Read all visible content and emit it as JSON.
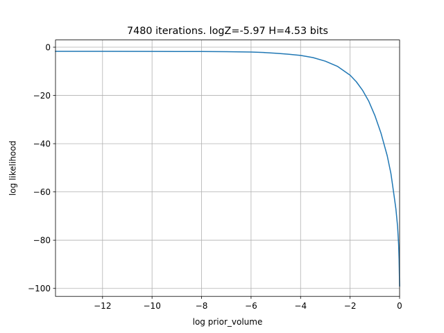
{
  "chart_data": {
    "type": "line",
    "title": "7480 iterations. logZ=-5.97 H=4.53 bits",
    "xlabel": "log prior_volume",
    "ylabel": "log likelihood",
    "xlim": [
      -13.9,
      0
    ],
    "ylim": [
      -103.3,
      3.0
    ],
    "xticks": [
      -12,
      -10,
      -8,
      -6,
      -4,
      -2,
      0
    ],
    "xtick_labels": [
      "−12",
      "−10",
      "−8",
      "−6",
      "−4",
      "−2",
      "0"
    ],
    "yticks": [
      0,
      -20,
      -40,
      -60,
      -80,
      -100
    ],
    "ytick_labels": [
      "0",
      "−20",
      "−40",
      "−60",
      "−80",
      "−100"
    ],
    "grid": true,
    "series": [
      {
        "color": "#1f77b4",
        "x": [
          -13.9,
          -12.0,
          -10.0,
          -8.0,
          -7.0,
          -6.0,
          -5.5,
          -5.0,
          -4.5,
          -4.0,
          -3.5,
          -3.0,
          -2.5,
          -2.0,
          -1.75,
          -1.5,
          -1.25,
          -1.0,
          -0.75,
          -0.5,
          -0.35,
          -0.25,
          -0.15,
          -0.08,
          -0.04,
          -0.02,
          -0.01,
          0.0
        ],
        "y": [
          -1.7,
          -1.7,
          -1.75,
          -1.8,
          -1.85,
          -2.0,
          -2.2,
          -2.5,
          -2.9,
          -3.4,
          -4.3,
          -5.8,
          -8.0,
          -11.6,
          -14.3,
          -17.8,
          -22.3,
          -28.3,
          -35.7,
          -45.0,
          -52.4,
          -59.6,
          -67.0,
          -74.5,
          -81.8,
          -88.0,
          -93.5,
          -99.0
        ]
      }
    ]
  }
}
